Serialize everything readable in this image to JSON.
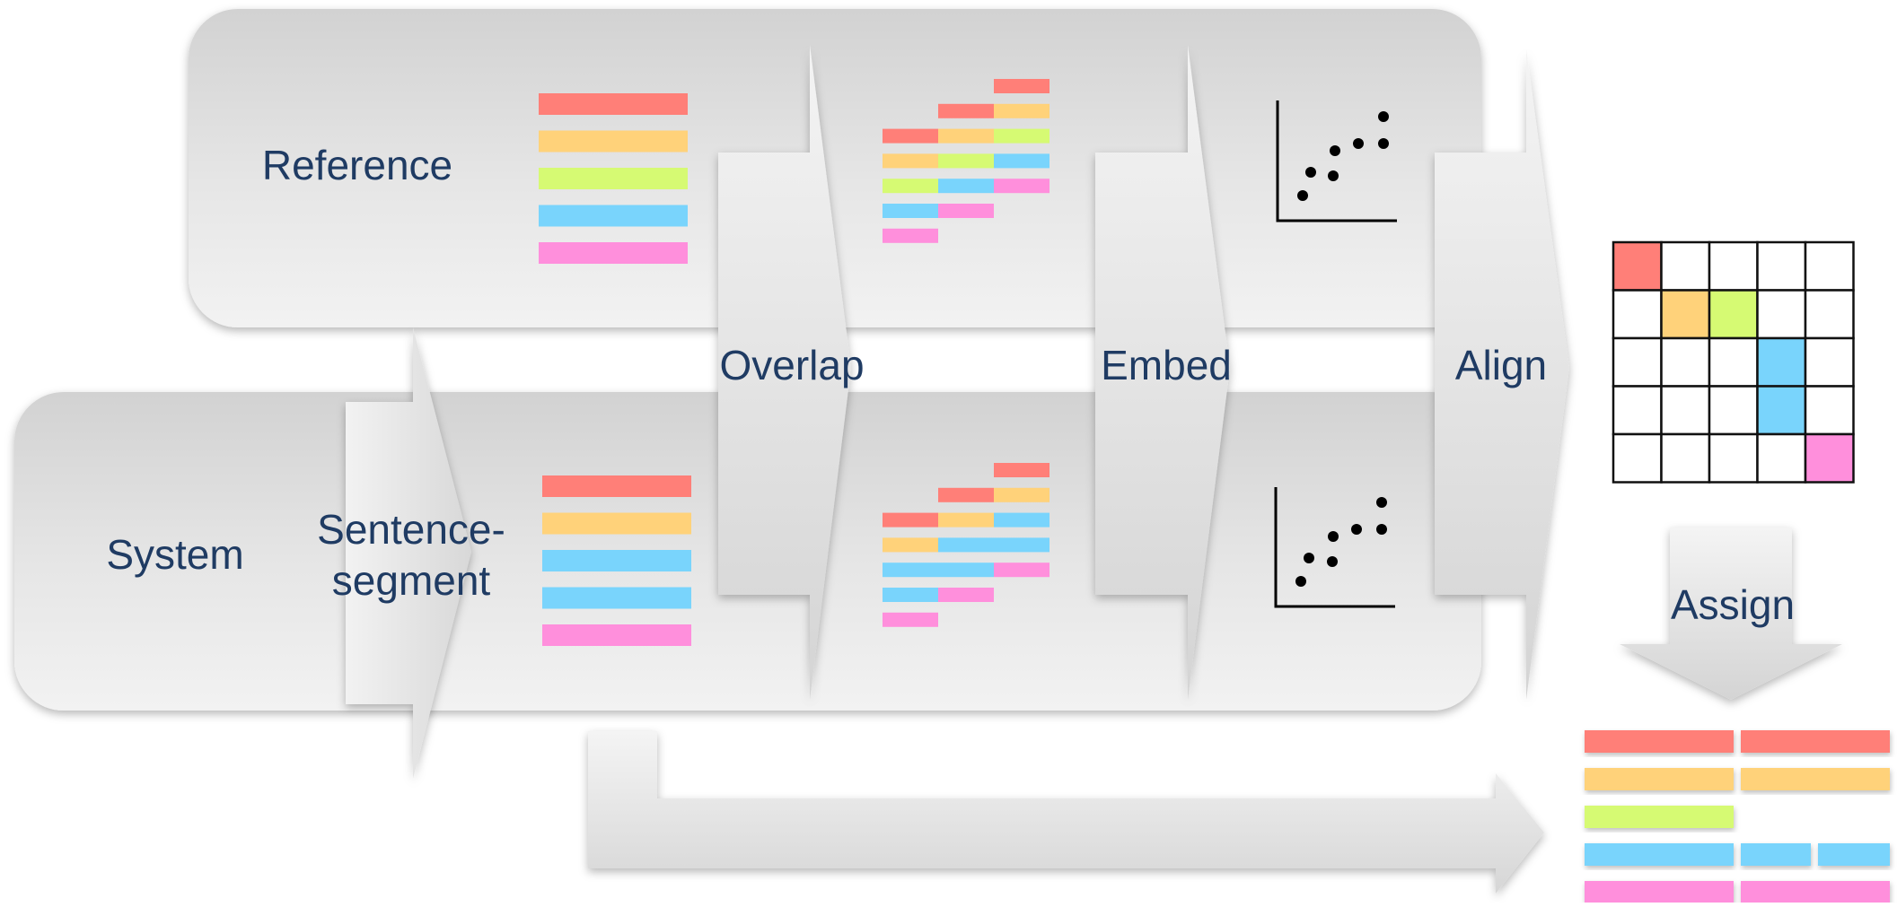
{
  "labels": {
    "reference": "Reference",
    "system": "System",
    "segment_line1": "Sentence-",
    "segment_line2": "segment",
    "overlap": "Overlap",
    "embed": "Embed",
    "align": "Align",
    "assign": "Assign"
  },
  "colors": {
    "red": "#ff7f78",
    "orange": "#ffd27a",
    "lime": "#d6fa73",
    "blue": "#79d4fc",
    "pink": "#ff8fdc",
    "text": "#1f3b63",
    "grid_border": "#111111"
  },
  "reference_sentences": [
    "red",
    "orange",
    "lime",
    "blue",
    "pink"
  ],
  "system_sentences": [
    "red",
    "orange",
    "blue",
    "blue",
    "pink"
  ],
  "reference_overlap_rows": [
    [
      "",
      "",
      "red"
    ],
    [
      "",
      "red",
      "orange"
    ],
    [
      "red",
      "orange",
      "lime"
    ],
    [
      "orange",
      "lime",
      "blue"
    ],
    [
      "lime",
      "blue",
      "pink"
    ],
    [
      "blue",
      "pink",
      ""
    ],
    [
      "pink",
      "",
      ""
    ]
  ],
  "system_overlap_rows": [
    [
      "",
      "",
      "red"
    ],
    [
      "",
      "red",
      "orange"
    ],
    [
      "red",
      "orange",
      "blue"
    ],
    [
      "orange",
      "blue",
      "blue"
    ],
    [
      "blue",
      "blue",
      "pink"
    ],
    [
      "blue",
      "pink",
      ""
    ],
    [
      "pink",
      "",
      ""
    ]
  ],
  "alignment_grid": [
    [
      "red",
      "",
      "",
      "",
      ""
    ],
    [
      "",
      "orange",
      "lime",
      "",
      ""
    ],
    [
      "",
      "",
      "",
      "blue",
      ""
    ],
    [
      "",
      "",
      "",
      "blue",
      ""
    ],
    [
      "",
      "",
      "",
      "",
      "pink"
    ]
  ],
  "output_rows": [
    [
      "red",
      "red"
    ],
    [
      "orange",
      "orange"
    ],
    [
      "lime"
    ],
    [
      "blue",
      "blue",
      "blue"
    ],
    [
      "pink",
      "pink"
    ]
  ]
}
